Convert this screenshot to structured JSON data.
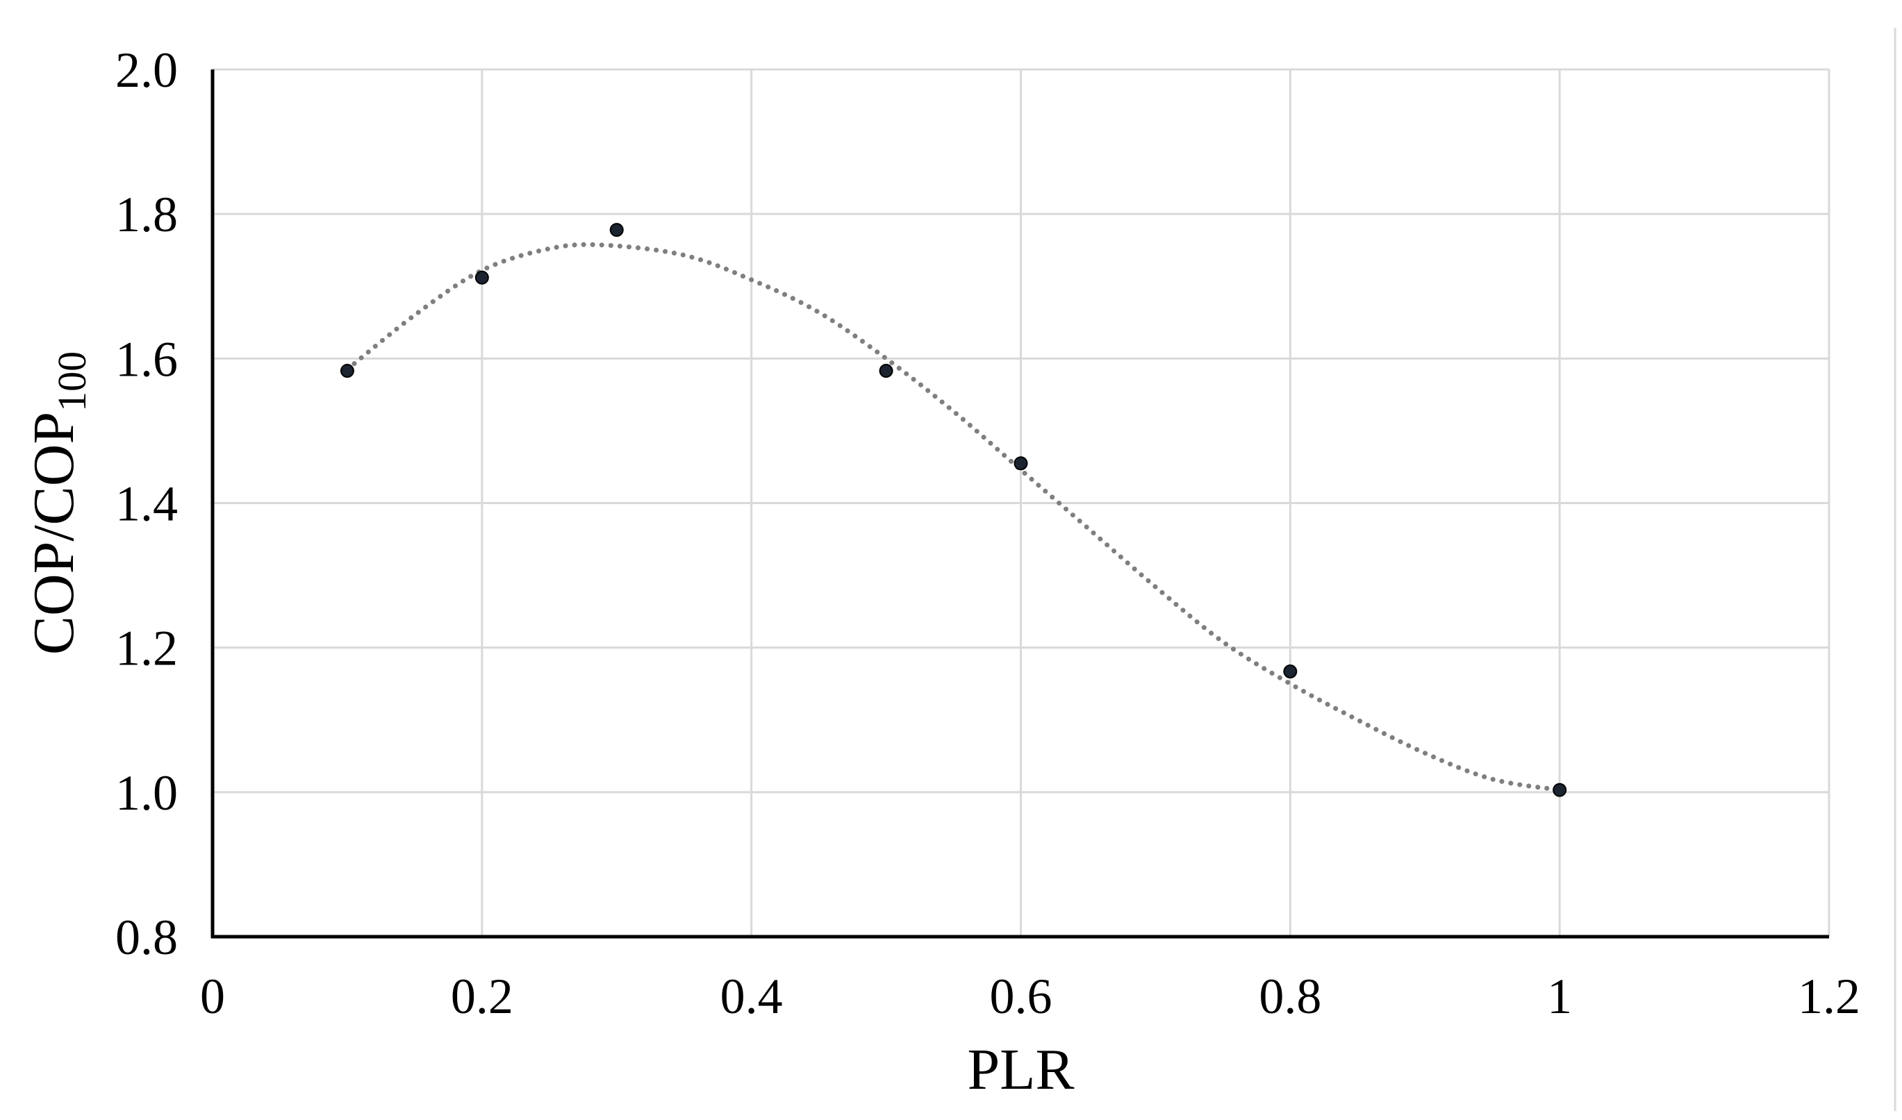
{
  "chart_data": {
    "type": "scatter",
    "title": "",
    "xlabel": "PLR",
    "ylabel_main": "COP/COP",
    "ylabel_sub": "100",
    "xlim": [
      0,
      1.2
    ],
    "ylim": [
      0.8,
      2.0
    ],
    "x_ticks": [
      "0",
      "0.2",
      "0.4",
      "0.6",
      "0.8",
      "1",
      "1.2"
    ],
    "y_ticks": [
      "0.8",
      "1.0",
      "1.2",
      "1.4",
      "1.6",
      "1.8",
      "2.0"
    ],
    "x_tick_values": [
      0,
      0.2,
      0.4,
      0.6,
      0.8,
      1.0,
      1.2
    ],
    "y_tick_values": [
      0.8,
      1.0,
      1.2,
      1.4,
      1.6,
      1.8,
      2.0
    ],
    "grid": true,
    "legend": "none",
    "series": [
      {
        "points": [
          {
            "x": 0.1,
            "y": 1.583
          },
          {
            "x": 0.2,
            "y": 1.712
          },
          {
            "x": 0.3,
            "y": 1.778
          },
          {
            "x": 0.5,
            "y": 1.583
          },
          {
            "x": 0.6,
            "y": 1.455
          },
          {
            "x": 0.8,
            "y": 1.167
          },
          {
            "x": 1.0,
            "y": 1.003
          }
        ],
        "marker_color": "#1b2430"
      }
    ],
    "trendline": {
      "style": "dotted",
      "color": "#7f7f7f",
      "x_range": [
        0.1,
        1.0
      ],
      "points": [
        {
          "x": 0.1,
          "y": 1.585
        },
        {
          "x": 0.15,
          "y": 1.66
        },
        {
          "x": 0.2,
          "y": 1.722
        },
        {
          "x": 0.25,
          "y": 1.752
        },
        {
          "x": 0.29,
          "y": 1.757
        },
        {
          "x": 0.35,
          "y": 1.743
        },
        {
          "x": 0.4,
          "y": 1.709
        },
        {
          "x": 0.45,
          "y": 1.664
        },
        {
          "x": 0.5,
          "y": 1.6
        },
        {
          "x": 0.55,
          "y": 1.527
        },
        {
          "x": 0.6,
          "y": 1.446
        },
        {
          "x": 0.65,
          "y": 1.365
        },
        {
          "x": 0.7,
          "y": 1.284
        },
        {
          "x": 0.75,
          "y": 1.208
        },
        {
          "x": 0.8,
          "y": 1.15
        },
        {
          "x": 0.85,
          "y": 1.1
        },
        {
          "x": 0.9,
          "y": 1.054
        },
        {
          "x": 0.95,
          "y": 1.018
        },
        {
          "x": 1.0,
          "y": 1.003
        }
      ]
    }
  }
}
